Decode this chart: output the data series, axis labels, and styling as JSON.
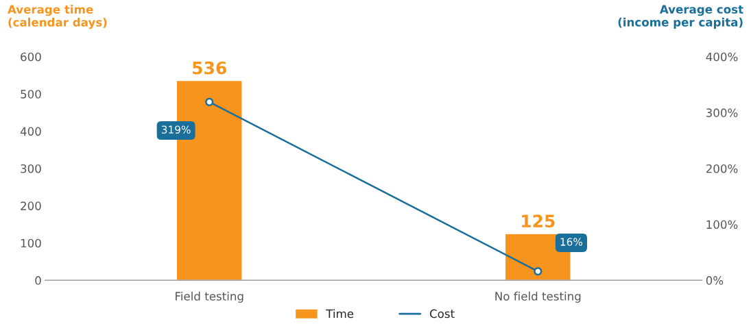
{
  "chart_data": {
    "type": "bar",
    "categories": [
      "Field testing",
      "No field testing"
    ],
    "ylabel": "Average time\n(calendar days)",
    "y2label": "Average cost\n(income per capita)",
    "series": [
      {
        "name": "Time",
        "color": "#f7941d",
        "values": [
          536,
          125
        ],
        "value_labels": [
          "536",
          "125"
        ]
      },
      {
        "name": "Cost",
        "type": "line",
        "axis": "y2",
        "color": "#1a6f9a",
        "values": [
          319,
          16
        ],
        "value_labels": [
          "319%",
          "16%"
        ],
        "marker": "circle"
      }
    ],
    "ylim": [
      0,
      600
    ],
    "yticks": [
      0,
      100,
      200,
      300,
      400,
      500,
      600
    ],
    "y2lim": [
      0,
      400
    ],
    "y2ticks": [
      {
        "value": 0,
        "label": "0%"
      },
      {
        "value": 100,
        "label": "100%"
      },
      {
        "value": 200,
        "label": "200%"
      },
      {
        "value": 300,
        "label": "300%"
      },
      {
        "value": 400,
        "label": "400%"
      }
    ],
    "legend": "bottom"
  }
}
